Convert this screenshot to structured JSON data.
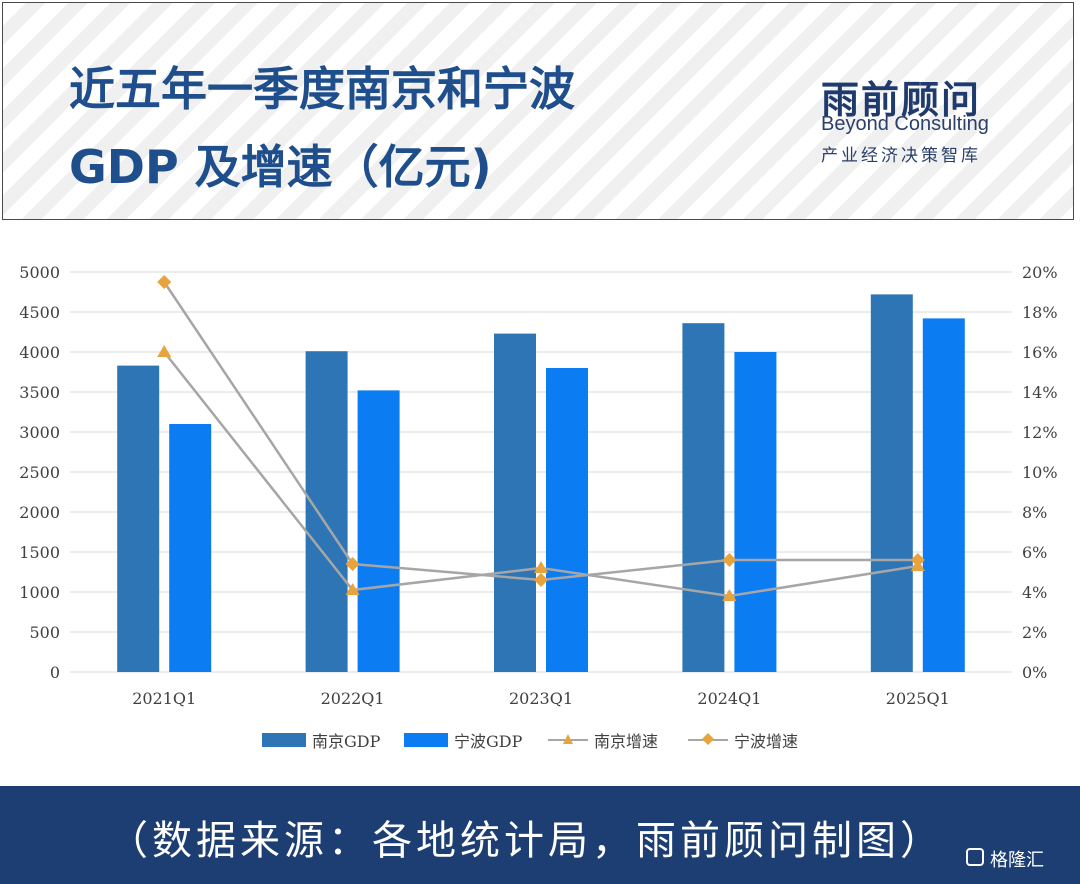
{
  "header": {
    "title_line1": "近五年一季度南京和宁波",
    "title_line2": "GDP 及增速（亿元)",
    "brand_cn": "雨前顾问",
    "brand_en": "Beyond Consulting",
    "brand_sub": "产业经济决策智库"
  },
  "footer": {
    "source": "（数据来源：各地统计局，雨前顾问制图）",
    "logo": "格隆汇"
  },
  "colors": {
    "nanjing_bar": "#2e75b6",
    "ningbo_bar": "#0b7cf2",
    "nanjing_growth": "#e8a33c",
    "ningbo_growth": "#e8a33c",
    "growth_line": "#a6a6a6",
    "header_title": "#1f4e8c",
    "footer_bg": "#1d3e73"
  },
  "chart_data": {
    "type": "bar",
    "categories": [
      "2021Q1",
      "2022Q1",
      "2023Q1",
      "2024Q1",
      "2025Q1"
    ],
    "series": [
      {
        "name": "南京GDP",
        "type": "bar",
        "axis": "left",
        "values": [
          3830,
          4010,
          4230,
          4360,
          4720
        ]
      },
      {
        "name": "宁波GDP",
        "type": "bar",
        "axis": "left",
        "values": [
          3100,
          3520,
          3800,
          4000,
          4420
        ]
      },
      {
        "name": "南京增速",
        "type": "line",
        "axis": "right",
        "marker": "triangle",
        "values": [
          16.0,
          4.1,
          5.2,
          3.8,
          5.3
        ]
      },
      {
        "name": "宁波增速",
        "type": "line",
        "axis": "right",
        "marker": "diamond",
        "values": [
          19.5,
          5.4,
          4.6,
          5.6,
          5.6
        ]
      }
    ],
    "ylim_left": [
      0,
      5000
    ],
    "yticks_left": [
      "0",
      "500",
      "1000",
      "1500",
      "2000",
      "2500",
      "3000",
      "3500",
      "4000",
      "4500",
      "5000"
    ],
    "ylim_right": [
      0,
      20
    ],
    "yticks_right": [
      "0%",
      "2%",
      "4%",
      "6%",
      "8%",
      "10%",
      "12%",
      "14%",
      "16%",
      "18%",
      "20%"
    ],
    "grid": true,
    "legend_position": "bottom"
  }
}
